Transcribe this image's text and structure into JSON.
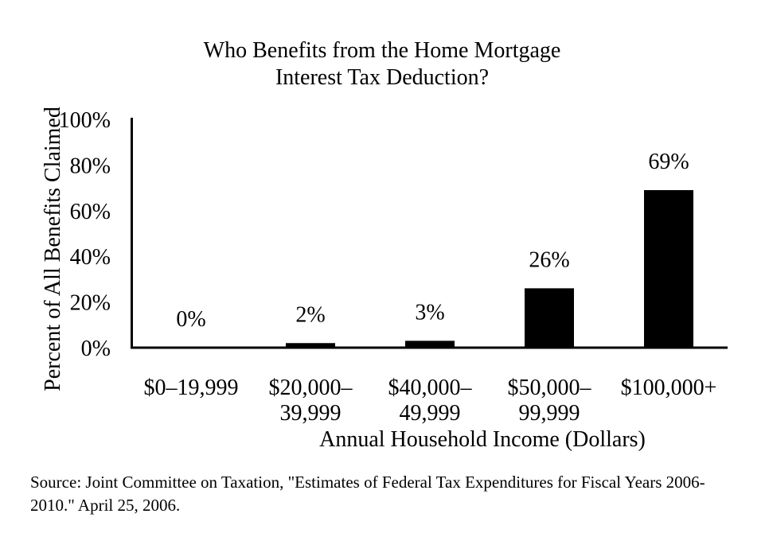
{
  "chart_data": {
    "type": "bar",
    "title": "Who Benefits from the Home Mortgage Interest Tax Deduction?",
    "title_lines": [
      "Who Benefits from the Home Mortgage",
      "Interest Tax Deduction?"
    ],
    "xlabel": "Annual Household Income (Dollars)",
    "ylabel": "Percent of All Benefits  Claimed",
    "categories": [
      "$0–19,999",
      "$20,000–39,999",
      "$40,000–49,999",
      "$50,000–99,999",
      "$100,000+"
    ],
    "category_lines": [
      [
        "$0–19,999"
      ],
      [
        "$20,000–",
        "39,999"
      ],
      [
        "$40,000–",
        "49,999"
      ],
      [
        "$50,000–",
        "99,999"
      ],
      [
        "$100,000+"
      ]
    ],
    "values": [
      0,
      2,
      3,
      26,
      69
    ],
    "value_labels": [
      "0%",
      "2%",
      "3%",
      "26%",
      "69%"
    ],
    "y_ticks": [
      0,
      20,
      40,
      60,
      80,
      100
    ],
    "y_tick_labels": [
      "0%",
      "20%",
      "40%",
      "60%",
      "80%",
      "100%"
    ],
    "ylim": [
      0,
      100
    ],
    "grid": false,
    "legend": "none",
    "bar_color": "#000000"
  },
  "source_note": "Source: Joint Committee on Taxation, \"Estimates of Federal Tax Expenditures for Fiscal Years 2006-2010.\" April 25, 2006."
}
